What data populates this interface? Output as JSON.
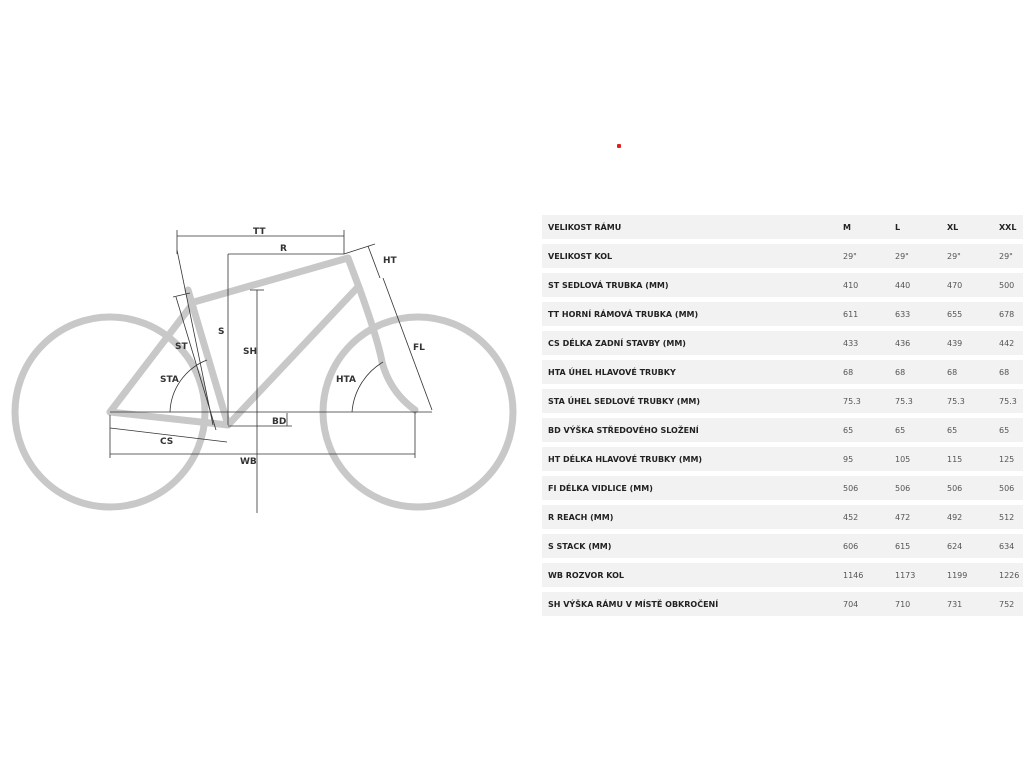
{
  "diagram": {
    "labels": {
      "tt": "TT",
      "r": "R",
      "ht": "HT",
      "fl": "FL",
      "s": "S",
      "sh": "SH",
      "st": "ST",
      "sta": "STA",
      "hta": "HTA",
      "bd": "BD",
      "cs": "CS",
      "wb": "WB"
    },
    "frame_color": "#c8c8c8"
  },
  "accent_dot_color": "#e02020",
  "table": {
    "header": {
      "label": "VELIKOST RÁMU",
      "sizes": [
        "M",
        "L",
        "XL",
        "XXL"
      ]
    },
    "rows": [
      {
        "label": "VELIKOST KOL",
        "values": [
          "29\"",
          "29\"",
          "29\"",
          "29\""
        ]
      },
      {
        "label": "ST SEDLOVÁ TRUBKA (MM)",
        "values": [
          "410",
          "440",
          "470",
          "500"
        ]
      },
      {
        "label": "TT HORNÍ RÁMOVÁ TRUBKA (MM)",
        "values": [
          "611",
          "633",
          "655",
          "678"
        ]
      },
      {
        "label": "CS DÉLKA ZADNÍ STAVBY (MM)",
        "values": [
          "433",
          "436",
          "439",
          "442"
        ]
      },
      {
        "label": "HTA ÚHEL HLAVOVÉ TRUBKY",
        "values": [
          "68",
          "68",
          "68",
          "68"
        ]
      },
      {
        "label": "STA ÚHEL SEDLOVÉ TRUBKY (MM)",
        "values": [
          "75.3",
          "75.3",
          "75.3",
          "75.3"
        ]
      },
      {
        "label": "BD VÝŠKA STŘEDOVÉHO SLOŽENÍ",
        "values": [
          "65",
          "65",
          "65",
          "65"
        ]
      },
      {
        "label": "HT DÉLKA HLAVOVÉ TRUBKY (MM)",
        "values": [
          "95",
          "105",
          "115",
          "125"
        ]
      },
      {
        "label": "FI DÉLKA VIDLICE (MM)",
        "values": [
          "506",
          "506",
          "506",
          "506"
        ]
      },
      {
        "label": "R REACH (MM)",
        "values": [
          "452",
          "472",
          "492",
          "512"
        ]
      },
      {
        "label": "S STACK (MM)",
        "values": [
          "606",
          "615",
          "624",
          "634"
        ]
      },
      {
        "label": "WB ROZVOR KOL",
        "values": [
          "1146",
          "1173",
          "1199",
          "1226"
        ]
      },
      {
        "label": "SH VÝŠKA RÁMU V MÍSTĚ OBKROČENÍ",
        "values": [
          "704",
          "710",
          "731",
          "752"
        ]
      }
    ]
  }
}
